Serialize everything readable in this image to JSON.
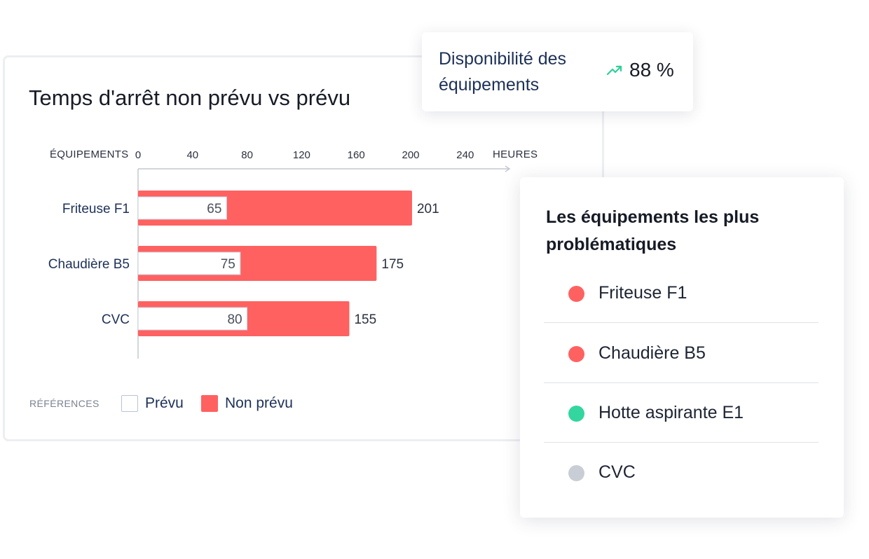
{
  "chart_data": {
    "type": "bar",
    "orientation": "horizontal",
    "stacked": true,
    "title": "Temps d'arrêt non prévu vs prévu",
    "ylabel": "ÉQUIPEMENTS",
    "xlabel": "HEURES",
    "categories": [
      "Friteuse F1",
      "Chaudière B5",
      "CVC"
    ],
    "xticks": [
      0,
      40,
      80,
      120,
      160,
      200,
      240
    ],
    "xlim": [
      0,
      270
    ],
    "series": [
      {
        "name": "Prévu",
        "values": [
          65,
          75,
          80
        ],
        "color": "#ffffff"
      },
      {
        "name": "Non prévu",
        "values": [
          201,
          175,
          155
        ],
        "color": "#ff6161"
      }
    ],
    "legend": {
      "caption": "RÉFÉRENCES",
      "labels": [
        "Prévu",
        "Non prévu"
      ],
      "placement": "bottom-left"
    },
    "grid": false
  },
  "kpi": {
    "label": "Disponibilité des équipements",
    "value": "88 %",
    "trend_icon": "trend-up-icon",
    "trend_color": "#2ecf98"
  },
  "problem_list": {
    "title": "Les équipements les plus problématiques",
    "items": [
      {
        "label": "Friteuse F1",
        "color": "#ff6161"
      },
      {
        "label": "Chaudière B5",
        "color": "#ff6161"
      },
      {
        "label": "Hotte aspirante E1",
        "color": "#33d69f"
      },
      {
        "label": "CVC",
        "color": "#c9ced6"
      }
    ]
  }
}
